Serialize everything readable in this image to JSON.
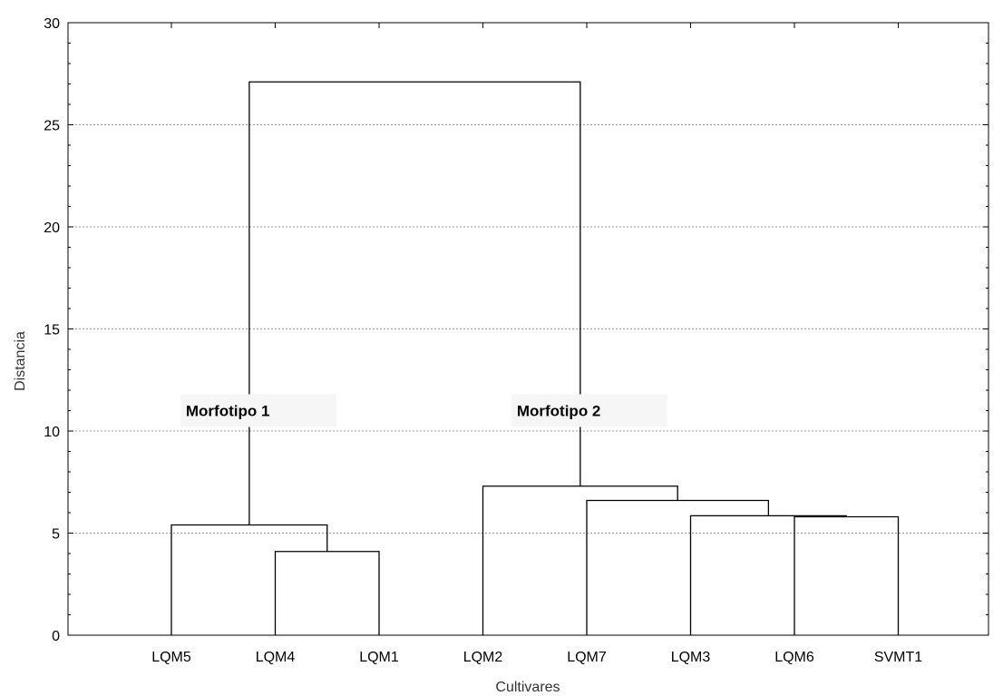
{
  "chart_data": {
    "type": "dendrogram",
    "title": "",
    "xlabel": "Cultivares",
    "ylabel": "Distancia",
    "ylim": [
      0,
      30
    ],
    "yticks": [
      0,
      5,
      10,
      15,
      20,
      25,
      30
    ],
    "grid": true,
    "leaves": [
      "LQM5",
      "LQM4",
      "LQM1",
      "LQM2",
      "LQM7",
      "LQM3",
      "LQM6",
      "SVMT1"
    ],
    "merges": [
      {
        "left": "LQM4",
        "right": "LQM1",
        "height": 4.1
      },
      {
        "left": "LQM5",
        "right": "LQM4+LQM1",
        "height": 5.4
      },
      {
        "left": "LQM6",
        "right": "SVMT1",
        "height": 5.8
      },
      {
        "left": "LQM3",
        "right": "LQM6+SVMT1",
        "height": 5.85
      },
      {
        "left": "LQM7",
        "right": "LQM3+LQM6+SVMT1",
        "height": 6.6
      },
      {
        "left": "LQM2",
        "right": "LQM7+LQM3+LQM6+SVMT1",
        "height": 7.3
      },
      {
        "left": "Morfotipo 1",
        "right": "Morfotipo 2",
        "height": 27.1
      }
    ],
    "annotations": [
      {
        "text": "Morfotipo 1",
        "cluster": [
          "LQM5",
          "LQM4",
          "LQM1"
        ],
        "y": 11
      },
      {
        "text": "Morfotipo 2",
        "cluster": [
          "LQM2",
          "LQM7",
          "LQM3",
          "LQM6",
          "SVMT1"
        ],
        "y": 11
      }
    ]
  }
}
